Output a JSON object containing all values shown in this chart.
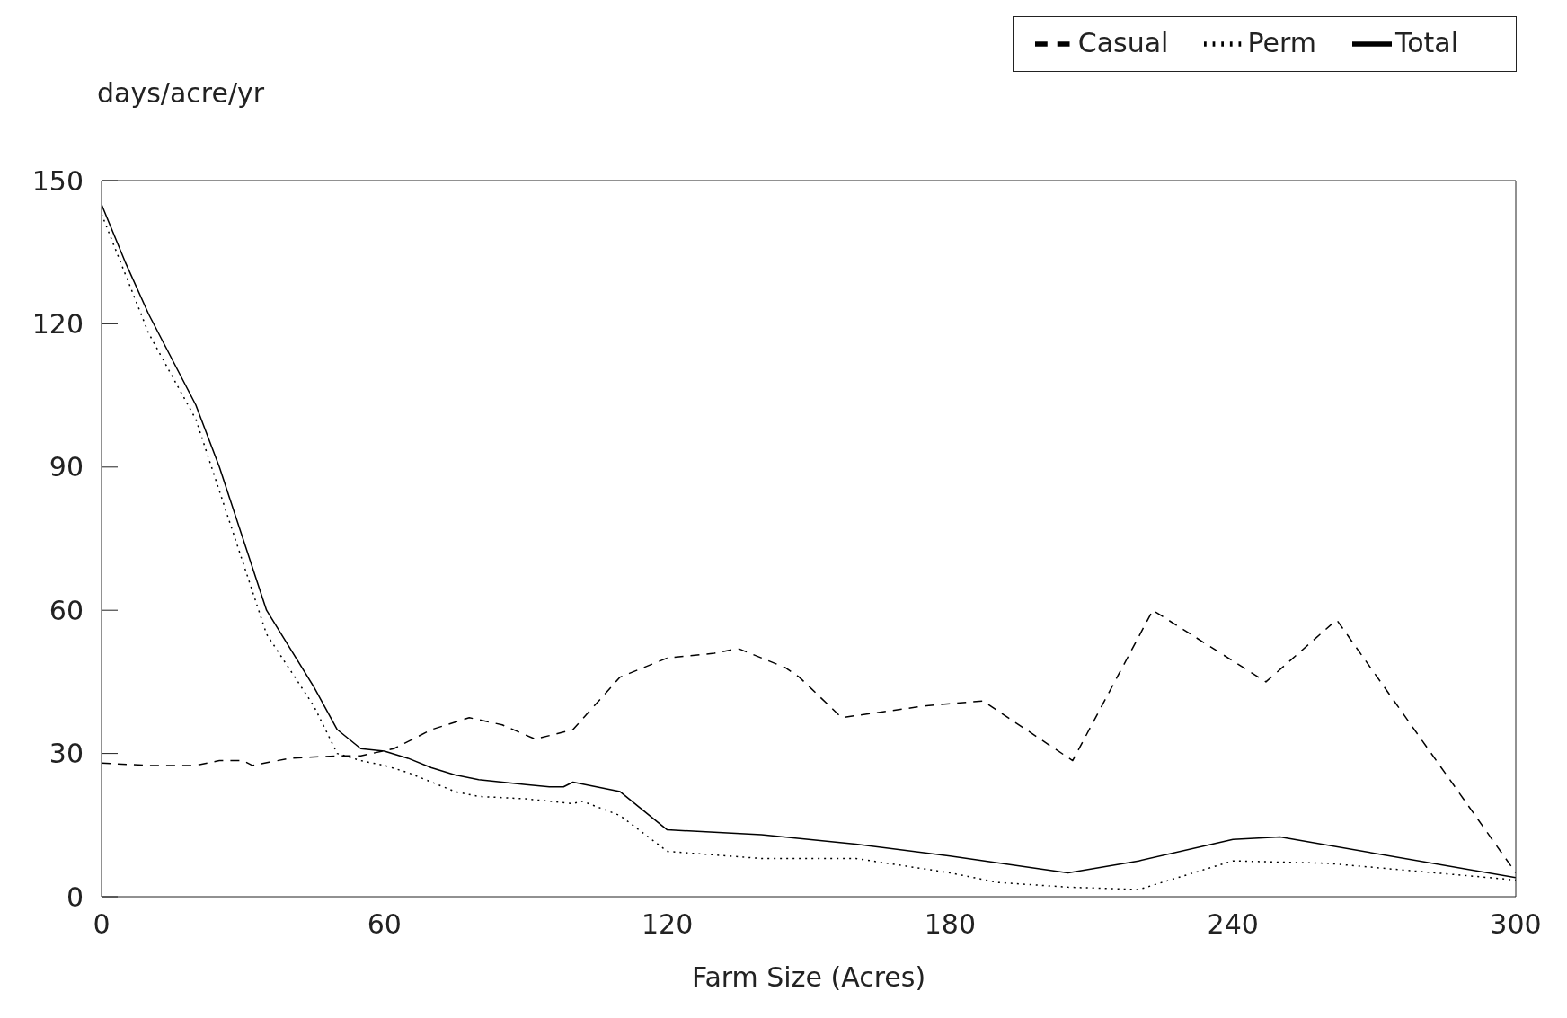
{
  "chart_data": {
    "type": "line",
    "ylabel": "days/acre/yr",
    "xlabel": "Farm Size (Acres)",
    "xlim": [
      0,
      300
    ],
    "xticks": [
      0,
      60,
      120,
      180,
      240,
      300
    ],
    "ylim": [
      0,
      150
    ],
    "yticks": [
      0,
      30,
      60,
      90,
      120,
      150
    ],
    "grid": false,
    "legend": "top right",
    "marker": "none",
    "series": [
      {
        "name": "Total",
        "color": "#000000",
        "line_style": "solid",
        "x": [
          0,
          5,
          10,
          20,
          25,
          30,
          35,
          45,
          50,
          55,
          60,
          65,
          70,
          75,
          80,
          85,
          90,
          95,
          98,
          100,
          110,
          120,
          130,
          140,
          150,
          160,
          180,
          205,
          220,
          240,
          250,
          300
        ],
        "values": [
          145,
          133,
          122,
          103,
          90,
          75,
          60,
          44,
          35,
          31,
          30.5,
          29,
          27,
          25.5,
          24.5,
          24,
          23.5,
          23,
          23,
          24,
          22,
          14,
          13.5,
          13,
          12,
          11,
          8.5,
          5,
          7.5,
          12,
          12.5,
          4
        ]
      },
      {
        "name": "Perm",
        "color": "#000000",
        "line_style": "dotted",
        "x": [
          0,
          10,
          20,
          25,
          30,
          35,
          45,
          50,
          55,
          60,
          65,
          70,
          75,
          80,
          90,
          100,
          102,
          110,
          120,
          140,
          160,
          180,
          190,
          205,
          220,
          240,
          260,
          300
        ],
        "values": [
          143,
          118,
          100,
          85,
          70,
          55,
          40,
          30,
          28.5,
          27.5,
          26,
          24,
          22,
          21,
          20.5,
          19.5,
          20,
          17,
          9.5,
          8,
          8,
          5,
          3,
          2,
          1.5,
          7.5,
          7,
          3.5
        ]
      },
      {
        "name": "Casual",
        "color": "#000000",
        "line_style": "dashed",
        "x": [
          0,
          10,
          20,
          25,
          30,
          32,
          40,
          50,
          55,
          62,
          70,
          78,
          85,
          92,
          100,
          110,
          120,
          130,
          135,
          145,
          148,
          157,
          175,
          187,
          206,
          223,
          247,
          262,
          300
        ],
        "values": [
          28,
          27.5,
          27.5,
          28.5,
          28.5,
          27.5,
          29,
          29.5,
          29.5,
          31,
          35,
          37.5,
          36,
          33,
          35,
          46,
          50,
          51,
          52,
          48,
          46,
          37.5,
          40,
          41,
          28.5,
          60,
          45,
          58,
          5
        ]
      }
    ]
  }
}
